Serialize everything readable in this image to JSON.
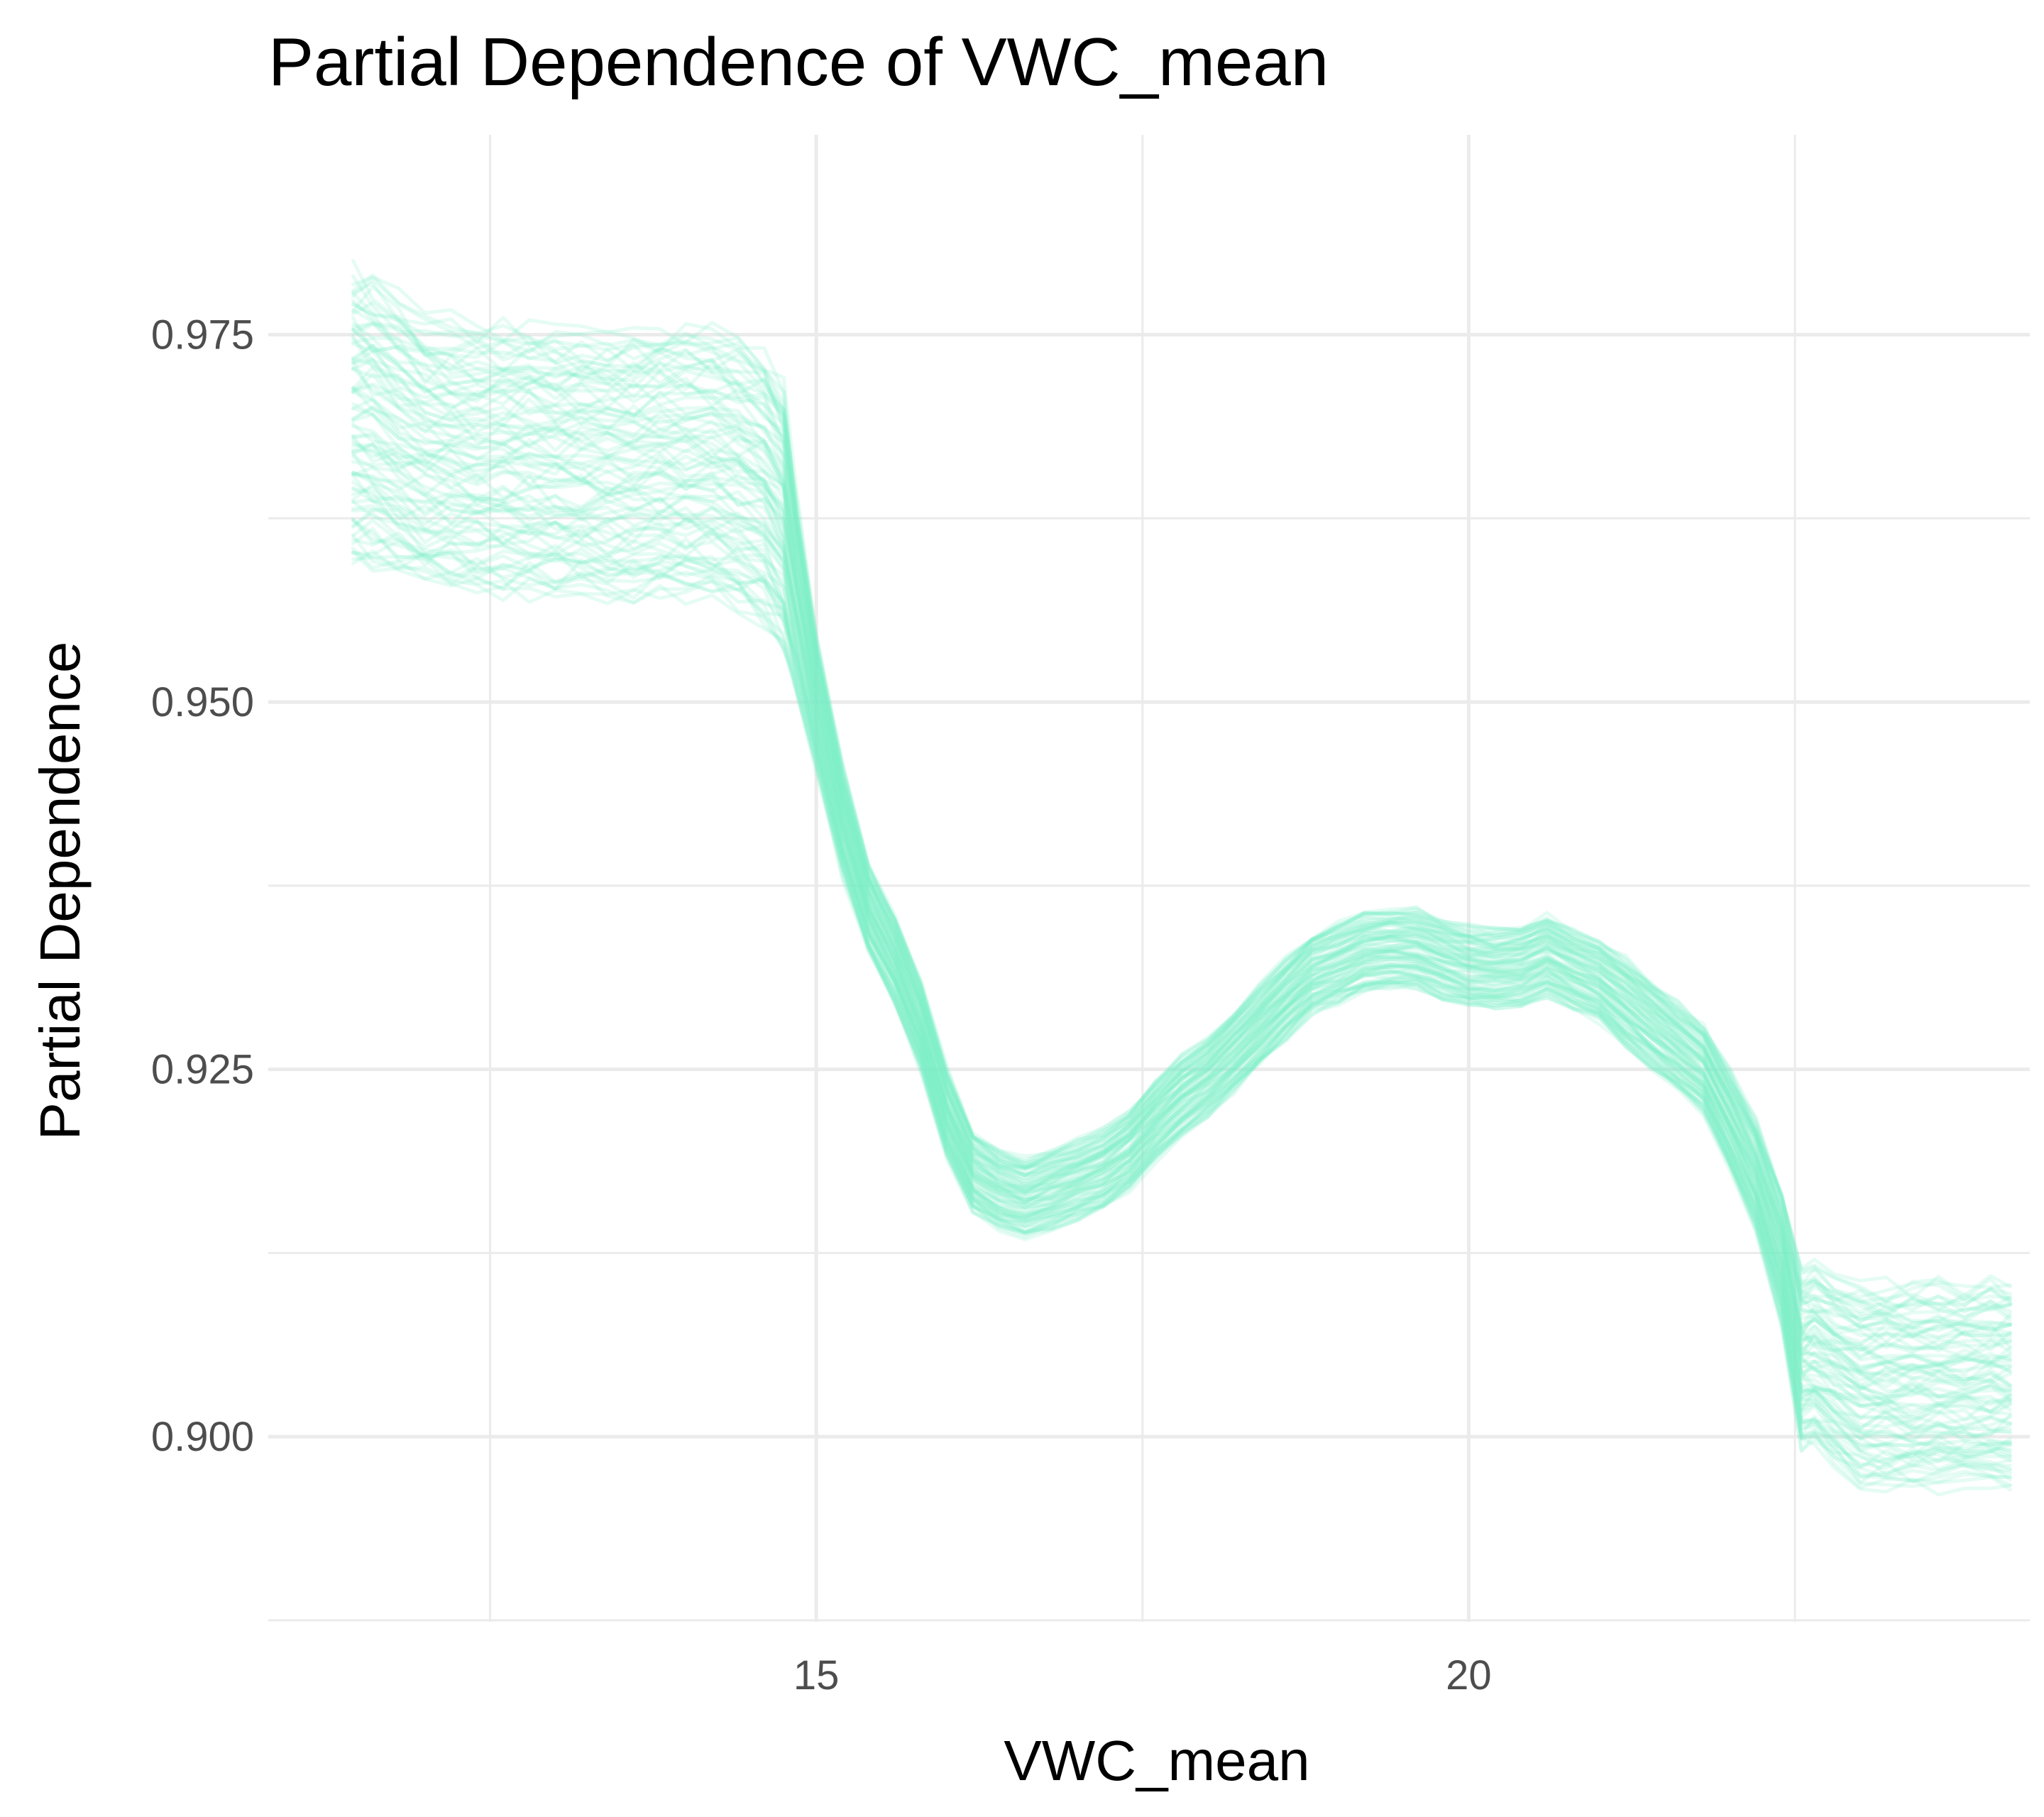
{
  "chart_data": {
    "type": "line",
    "title": "Partial Dependence of VWC_mean",
    "xlabel": "VWC_mean",
    "ylabel": "Partial Dependence",
    "xlim": [
      10.8,
      24.3
    ],
    "ylim": [
      0.8874,
      0.9886
    ],
    "x_ticks": [
      15,
      20
    ],
    "x_tick_labels": [
      "15",
      "20"
    ],
    "x_minor_ticks": [
      12.5,
      17.5,
      22.5
    ],
    "y_ticks": [
      0.9,
      0.925,
      0.95,
      0.975
    ],
    "y_tick_labels": [
      "0.900",
      "0.925",
      "0.950",
      "0.975"
    ],
    "y_minor_ticks": [
      0.8875,
      0.9125,
      0.9375,
      0.9625
    ],
    "grid": true,
    "legend": "none",
    "line_color": "#7ff0c8",
    "line_alpha": 0.2,
    "n_curves": 90,
    "x": [
      11.45,
      11.6,
      11.8,
      12.0,
      12.2,
      12.4,
      12.6,
      12.8,
      13.0,
      13.2,
      13.4,
      13.6,
      13.8,
      14.0,
      14.2,
      14.4,
      14.6,
      14.75,
      14.85,
      15.0,
      15.2,
      15.4,
      15.6,
      15.8,
      16.0,
      16.2,
      16.4,
      16.6,
      16.8,
      17.0,
      17.2,
      17.4,
      17.6,
      17.8,
      18.0,
      18.2,
      18.4,
      18.6,
      18.8,
      19.0,
      19.2,
      19.4,
      19.6,
      19.8,
      20.0,
      20.2,
      20.4,
      20.6,
      20.8,
      21.0,
      21.2,
      21.4,
      21.6,
      21.8,
      22.0,
      22.2,
      22.4,
      22.55,
      22.65,
      22.8,
      23.0,
      23.2,
      23.4,
      23.6,
      23.8,
      24.0,
      24.15
    ],
    "mean_curve": [
      0.9695,
      0.969,
      0.968,
      0.967,
      0.9668,
      0.9665,
      0.9665,
      0.9665,
      0.9662,
      0.9662,
      0.966,
      0.966,
      0.9662,
      0.9662,
      0.966,
      0.9655,
      0.9645,
      0.9625,
      0.957,
      0.95,
      0.942,
      0.936,
      0.9325,
      0.928,
      0.922,
      0.918,
      0.9168,
      0.9162,
      0.9168,
      0.9175,
      0.9182,
      0.9195,
      0.9215,
      0.9232,
      0.9245,
      0.9262,
      0.928,
      0.9298,
      0.9315,
      0.9322,
      0.933,
      0.9332,
      0.9332,
      0.9325,
      0.932,
      0.9318,
      0.932,
      0.9328,
      0.9318,
      0.931,
      0.9295,
      0.928,
      0.9265,
      0.925,
      0.9215,
      0.9178,
      0.9122,
      0.9052,
      0.9055,
      0.9045,
      0.9035,
      0.9035,
      0.9035,
      0.9035,
      0.9035,
      0.9035,
      0.9035
    ],
    "spread": [
      0.0065,
      0.0065,
      0.0062,
      0.006,
      0.006,
      0.006,
      0.006,
      0.006,
      0.006,
      0.006,
      0.006,
      0.006,
      0.006,
      0.006,
      0.006,
      0.006,
      0.006,
      0.006,
      0.0045,
      0.003,
      0.0025,
      0.002,
      0.002,
      0.002,
      0.002,
      0.0018,
      0.0018,
      0.0018,
      0.0018,
      0.0018,
      0.0018,
      0.0018,
      0.0018,
      0.0018,
      0.0018,
      0.0018,
      0.0018,
      0.0018,
      0.0018,
      0.0018,
      0.0018,
      0.0018,
      0.0018,
      0.0018,
      0.0018,
      0.0018,
      0.0018,
      0.0018,
      0.0018,
      0.0018,
      0.002,
      0.002,
      0.002,
      0.002,
      0.0022,
      0.0025,
      0.003,
      0.004,
      0.004,
      0.004,
      0.0045,
      0.0045,
      0.0045,
      0.0045,
      0.0045,
      0.0045,
      0.0045
    ]
  }
}
